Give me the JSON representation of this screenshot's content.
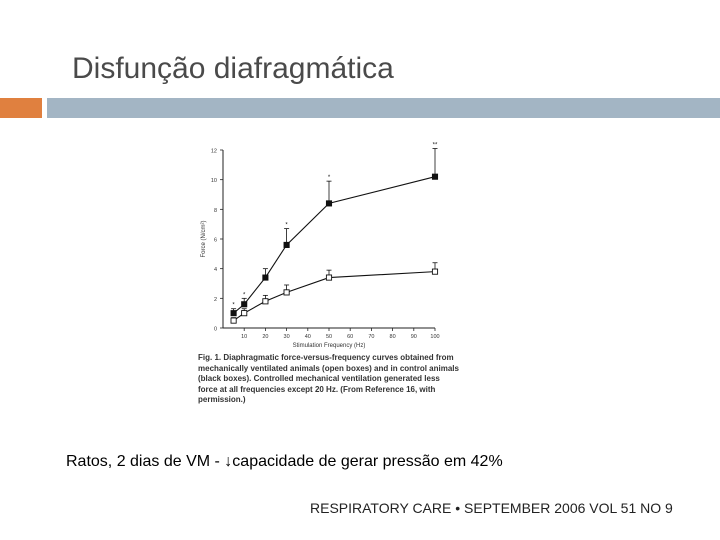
{
  "slide": {
    "title": "Disfunção diafragmática",
    "summary": "Ratos, 2 dias de VM - ↓capacidade de gerar pressão em 42%",
    "citation": "RESPIRATORY CARE • SEPTEMBER 2006 VOL 51 NO 9",
    "accent_color": "#e0803f",
    "bar_color": "#a3b5c4"
  },
  "figure": {
    "caption": "Fig. 1. Diaphragmatic force-versus-frequency curves obtained from mechanically ventilated animals (open boxes) and in control animals (black boxes). Controlled mechanical ventilation generated less force at all frequencies except 20 Hz. (From Reference 16, with permission.)"
  },
  "chart_data": {
    "type": "line",
    "xlabel": "Stimulation Frequency (Hz)",
    "ylabel": "Force (N/cm²)",
    "xlim": [
      0,
      100
    ],
    "ylim": [
      0,
      12
    ],
    "x_ticks": [
      "10",
      "20",
      "30",
      "40",
      "50",
      "60",
      "70",
      "80",
      "90",
      "100"
    ],
    "y_ticks": [
      "0",
      "2",
      "4",
      "6",
      "8",
      "10",
      "12"
    ],
    "x": [
      5,
      10,
      20,
      30,
      50,
      100
    ],
    "series": [
      {
        "marker": "filled-square",
        "values": [
          1.0,
          1.6,
          3.4,
          5.6,
          8.4,
          10.2
        ],
        "errors": [
          0.3,
          0.4,
          0.6,
          1.1,
          1.5,
          1.9
        ],
        "annotations": [
          "*",
          "*",
          "",
          "*",
          "*",
          "**"
        ]
      },
      {
        "marker": "open-square",
        "values": [
          0.5,
          1.0,
          1.8,
          2.4,
          3.4,
          3.8
        ],
        "errors": [
          0.2,
          0.3,
          0.4,
          0.5,
          0.5,
          0.6
        ]
      }
    ]
  }
}
